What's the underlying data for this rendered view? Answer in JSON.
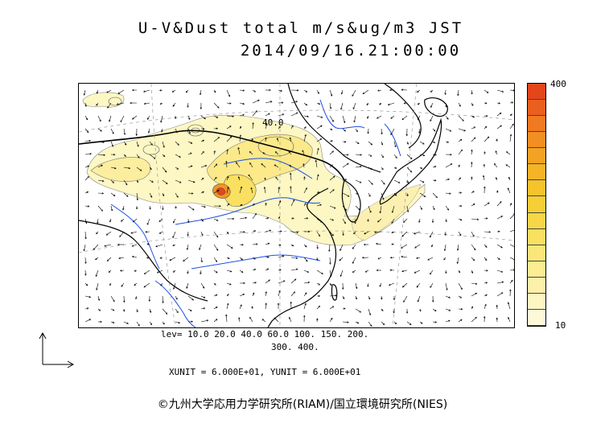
{
  "title": {
    "line1": "U-V&Dust total m/s&ug/m3 JST",
    "line2": "2014/09/16.21:00:00"
  },
  "colorbar": {
    "max_label": "400",
    "min_label": "10",
    "colors": [
      "#fdf9d8",
      "#fdf5c2",
      "#fdf0a8",
      "#fcec92",
      "#fbe67a",
      "#f9e060",
      "#f7d748",
      "#f6cf34",
      "#f5c32a",
      "#f5b426",
      "#f4a224",
      "#f28f22",
      "#ef7a20",
      "#ea5f1e",
      "#e3461b"
    ]
  },
  "map": {
    "contour_label": "40.0"
  },
  "levels": {
    "line1": "lev= 10.0 20.0 40.0 60.0 100. 150. 200.",
    "line2": "300. 400."
  },
  "units": "XUNIT = 6.000E+01, YUNIT = 6.000E+01",
  "copyright": "©九州大学応用力学研究所(RIAM)/国立環境研究所(NIES)"
}
